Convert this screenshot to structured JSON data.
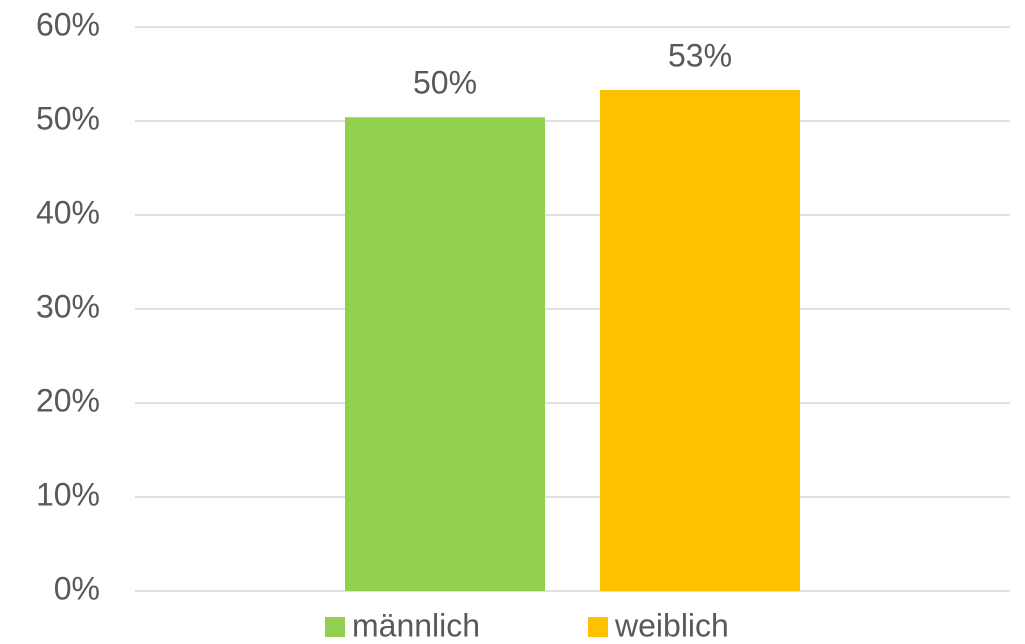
{
  "chart_data": {
    "type": "bar",
    "categories": [
      null
    ],
    "series": [
      {
        "name": "männlich",
        "color": "#92d050",
        "values": [
          50.4
        ],
        "value_labels": [
          "50%"
        ]
      },
      {
        "name": "weiblich",
        "color": "#ffc000",
        "values": [
          53.3
        ],
        "value_labels": [
          "53%"
        ]
      }
    ],
    "ylim": [
      0,
      60
    ],
    "yticks": [
      {
        "value": 0,
        "label": "0%"
      },
      {
        "value": 10,
        "label": "10%"
      },
      {
        "value": 20,
        "label": "20%"
      },
      {
        "value": 30,
        "label": "30%"
      },
      {
        "value": 40,
        "label": "40%"
      },
      {
        "value": 50,
        "label": "50%"
      },
      {
        "value": 60,
        "label": "60%"
      }
    ],
    "grid": true,
    "legend": "bottom"
  }
}
